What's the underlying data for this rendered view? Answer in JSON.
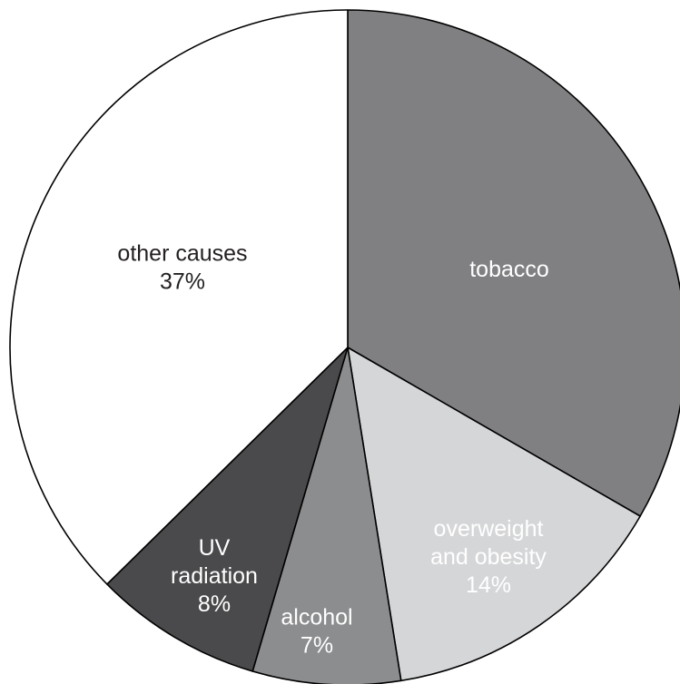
{
  "chart_data": {
    "type": "pie",
    "start_angle_deg": 0,
    "direction": "clockwise",
    "slices": [
      {
        "label": "tobacco",
        "value": 33,
        "value_label": "",
        "color": "#808083",
        "text_color": "#ffffff",
        "label_lines": [
          "tobacco"
        ]
      },
      {
        "label": "overweight and obesity",
        "value": 14,
        "value_label": "14%",
        "color": "#d5d6d8",
        "text_color": "#ffffff",
        "label_lines": [
          "overweight",
          "and obesity"
        ]
      },
      {
        "label": "alcohol",
        "value": 7,
        "value_label": "7%",
        "color": "#8c8d8f",
        "text_color": "#ffffff",
        "label_lines": [
          "alcohol"
        ]
      },
      {
        "label": "UV radiation",
        "value": 8,
        "value_label": "8%",
        "color": "#4a4a4c",
        "text_color": "#ffffff",
        "label_lines": [
          "UV",
          "radiation"
        ]
      },
      {
        "label": "other causes",
        "value": 37,
        "value_label": "37%",
        "color": "#ffffff",
        "text_color": "#231f20",
        "label_lines": [
          "other causes"
        ]
      }
    ]
  }
}
